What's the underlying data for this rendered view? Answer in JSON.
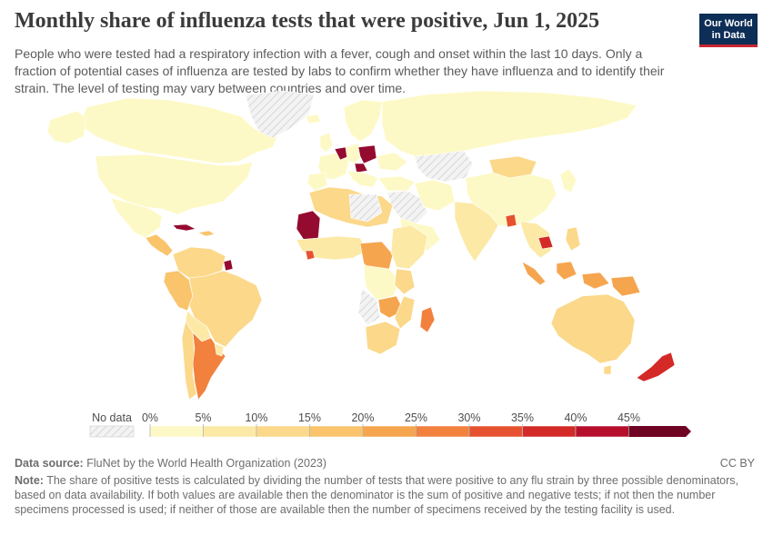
{
  "title": "Monthly share of influenza tests that were positive, Jun 1, 2025",
  "subtitle": "People who were tested had a respiratory infection with a fever, cough and onset within the last 10 days. Only a fraction of potential cases of influenza are tested by labs to confirm whether they have influenza and to identify their strain. The level of testing may vary between countries and over time.",
  "logo": {
    "line1": "Our World",
    "line2": "in Data"
  },
  "legend": {
    "no_data_label": "No data",
    "ticks": [
      "0%",
      "5%",
      "10%",
      "15%",
      "20%",
      "25%",
      "30%",
      "35%",
      "40%",
      "45%"
    ],
    "colors": [
      "#fdf9c6",
      "#fce9a6",
      "#fbd88a",
      "#f9c46b",
      "#f6a54f",
      "#f1813d",
      "#e6522f",
      "#d32a27",
      "#b60f2c",
      "#950a2f",
      "#6f0323"
    ]
  },
  "source": {
    "label": "Data source:",
    "text": "FluNet by the World Health Organization (2023)"
  },
  "license": "CC BY",
  "note": {
    "label": "Note:",
    "text": "The share of positive tests is calculated by dividing the number of tests that were positive to any flu strain by three possible denominators, based on data availability. If both values are available then the denominator is the sum of positive and negative tests; if not then the number specimens processed is used; if neither of those are available then the number of specimens received by the testing facility is used."
  },
  "map_regions": [
    {
      "name": "Canada",
      "color": "#fdf9c6"
    },
    {
      "name": "United States",
      "color": "#fdf9c6"
    },
    {
      "name": "Mexico",
      "color": "#fdf9c6"
    },
    {
      "name": "Greenland",
      "color": "no-data"
    },
    {
      "name": "Brazil",
      "color": "#fbd88a"
    },
    {
      "name": "Argentina",
      "color": "#f1813d"
    },
    {
      "name": "Peru",
      "color": "#f9c46b"
    },
    {
      "name": "French Guiana",
      "color": "#950a2f"
    },
    {
      "name": "Mauritania",
      "color": "#950a2f"
    },
    {
      "name": "Poland",
      "color": "#950a2f"
    },
    {
      "name": "Czechia",
      "color": "#950a2f"
    },
    {
      "name": "Cambodia",
      "color": "#d32a27"
    },
    {
      "name": "New Zealand",
      "color": "#d32a27"
    },
    {
      "name": "Madagascar",
      "color": "#f1813d"
    },
    {
      "name": "Indonesia",
      "color": "#f6a54f"
    },
    {
      "name": "Australia",
      "color": "#fbd88a"
    },
    {
      "name": "South Africa",
      "color": "#fbd88a"
    },
    {
      "name": "Russia",
      "color": "#fdf9c6"
    },
    {
      "name": "China",
      "color": "#fdf9c6"
    },
    {
      "name": "Mongolia",
      "color": "#fbd88a"
    },
    {
      "name": "India",
      "color": "#fce9a6"
    },
    {
      "name": "Bangladesh",
      "color": "#e6522f"
    }
  ]
}
